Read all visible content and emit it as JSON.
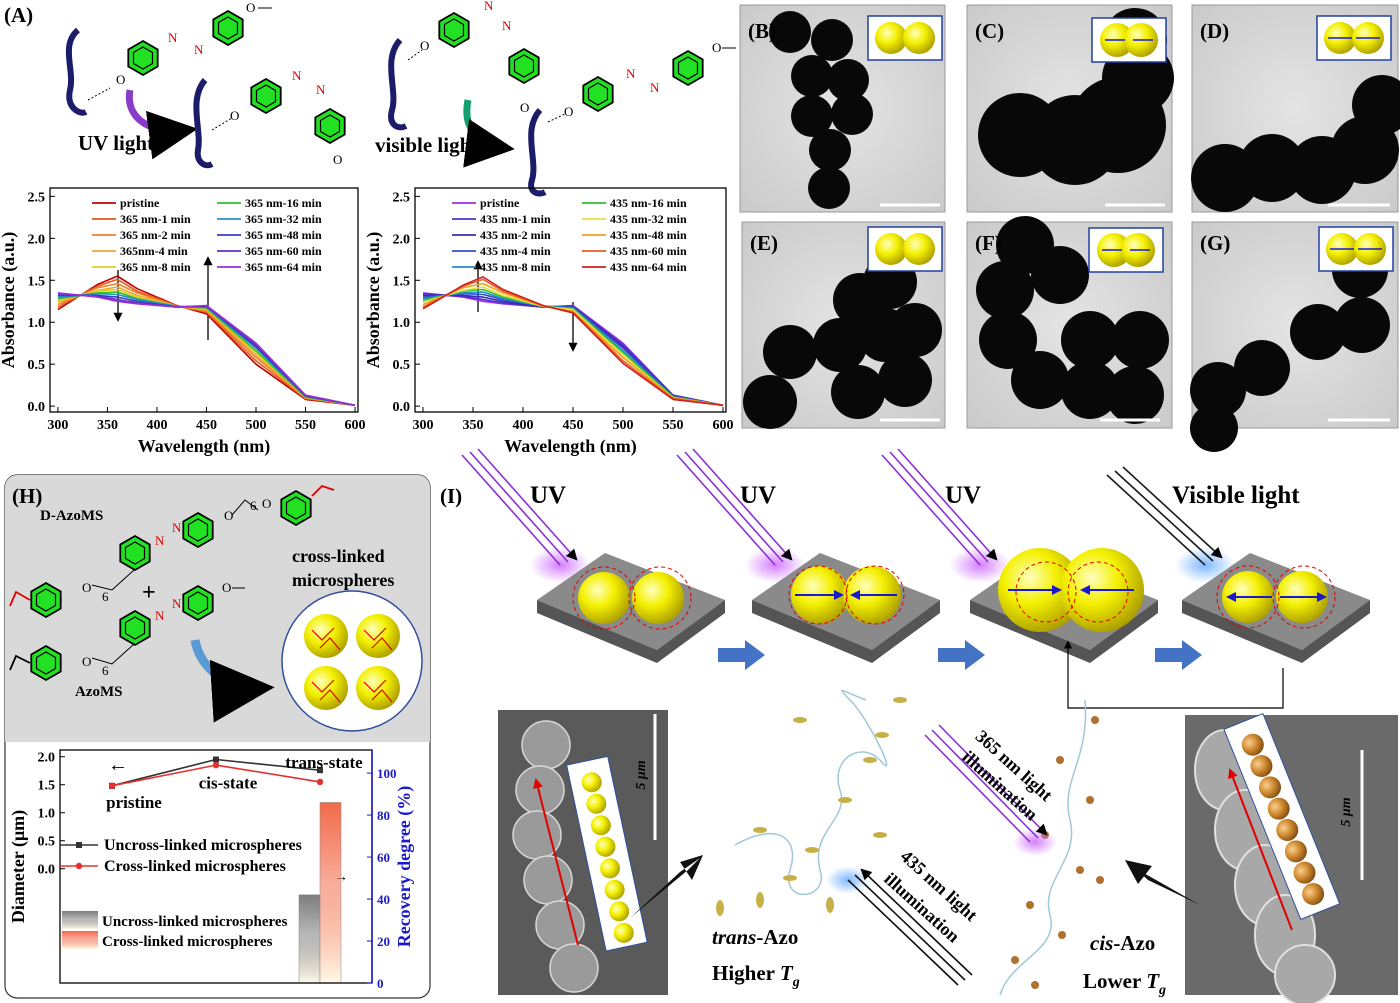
{
  "panel_labels": {
    "A": "(A)",
    "B": "(B)",
    "C": "(C)",
    "D": "(D)",
    "E": "(E)",
    "F": "(F)",
    "G": "(G)",
    "H": "(H)",
    "I": "(I)"
  },
  "scheme": {
    "uv_light": "UV light",
    "visible_light": "visible light",
    "atom_o": "O",
    "atom_n": "N",
    "subscript": "6",
    "d_azoms": "D-AzoMS",
    "azoms": "AzoMS",
    "plus": "+",
    "crosslinked": [
      "cross-linked",
      "microspheres"
    ]
  },
  "process": {
    "uv": "UV",
    "visible": "Visible light",
    "uv365": [
      "365 nm light",
      "illumination"
    ],
    "vis435": [
      "435 nm light",
      "illumination"
    ],
    "trans": [
      "trans",
      "-Azo"
    ],
    "higher": [
      "Higher ",
      "T",
      "g"
    ],
    "cis": [
      "cis",
      "-Azo"
    ],
    "lower": [
      "Lower ",
      "T",
      "g"
    ],
    "scale": "5 μm"
  },
  "chart_data": [
    {
      "type": "line",
      "xlabel": "Wavelength (nm)",
      "ylabel": "Absorbance (a.u.)",
      "x": [
        300,
        340,
        360,
        380,
        420,
        450,
        500,
        550,
        600
      ],
      "xlim": [
        292,
        603
      ],
      "xticks": [
        300,
        350,
        400,
        450,
        500,
        550,
        600
      ],
      "ylim": [
        -0.07,
        2.6
      ],
      "yticks": [
        {
          "value": 0,
          "label": "0.0"
        },
        0.5,
        {
          "value": 1,
          "label": "1.0"
        },
        1.5,
        {
          "value": 2,
          "label": "2.0"
        },
        2.5
      ],
      "series": [
        {
          "name": "pristine",
          "color": "#c00000",
          "values": [
            1.15,
            1.45,
            1.55,
            1.4,
            1.2,
            1.1,
            0.5,
            0.08,
            0.01
          ]
        },
        {
          "name": "365 nm-1 min",
          "color": "#e8581a",
          "values": [
            1.18,
            1.43,
            1.51,
            1.37,
            1.2,
            1.12,
            0.54,
            0.09,
            0.01
          ]
        },
        {
          "name": "365 nm-2 min",
          "color": "#f0802a",
          "values": [
            1.21,
            1.41,
            1.46,
            1.35,
            1.19,
            1.13,
            0.58,
            0.1,
            0.01
          ]
        },
        {
          "name": "365nm-4 min",
          "color": "#f0a830",
          "values": [
            1.24,
            1.38,
            1.42,
            1.32,
            1.19,
            1.15,
            0.61,
            0.1,
            0.01
          ]
        },
        {
          "name": "365 nm-8 min",
          "color": "#e0d020",
          "values": [
            1.26,
            1.37,
            1.39,
            1.3,
            1.19,
            1.16,
            0.64,
            0.11,
            0.01
          ]
        },
        {
          "name": "365 nm-16 min",
          "color": "#30c030",
          "values": [
            1.28,
            1.35,
            1.36,
            1.28,
            1.19,
            1.17,
            0.66,
            0.11,
            0.01
          ]
        },
        {
          "name": "365 nm-32 min",
          "color": "#2090d0",
          "values": [
            1.3,
            1.34,
            1.33,
            1.27,
            1.19,
            1.18,
            0.69,
            0.12,
            0.01
          ]
        },
        {
          "name": "365 nm-48 min",
          "color": "#3c3cc0",
          "values": [
            1.32,
            1.32,
            1.3,
            1.25,
            1.18,
            1.19,
            0.71,
            0.12,
            0.01
          ]
        },
        {
          "name": "365 nm-60 min",
          "color": "#6030c0",
          "values": [
            1.34,
            1.31,
            1.27,
            1.23,
            1.18,
            1.19,
            0.73,
            0.13,
            0.01
          ]
        },
        {
          "name": "365 nm-64 min",
          "color": "#9a30d8",
          "values": [
            1.35,
            1.3,
            1.25,
            1.22,
            1.18,
            1.2,
            0.75,
            0.13,
            0.01
          ]
        }
      ]
    },
    {
      "type": "line",
      "xlabel": "Wavelength (nm)",
      "ylabel": "Absorbance (a.u.)",
      "x": [
        300,
        340,
        360,
        380,
        420,
        450,
        500,
        550,
        600
      ],
      "xlim": [
        292,
        603
      ],
      "xticks": [
        300,
        350,
        400,
        450,
        500,
        550,
        600
      ],
      "ylim": [
        -0.07,
        2.6
      ],
      "yticks": [
        {
          "value": 0,
          "label": "0.0"
        },
        0.5,
        {
          "value": 1,
          "label": "1.0"
        },
        1.5,
        {
          "value": 2,
          "label": "2.0"
        },
        2.5
      ],
      "series": [
        {
          "name": "pristine",
          "color": "#9a30e8",
          "values": [
            1.35,
            1.3,
            1.25,
            1.22,
            1.18,
            1.2,
            0.75,
            0.13,
            0.01
          ]
        },
        {
          "name": "435 nm-1 min",
          "color": "#5030d0",
          "values": [
            1.34,
            1.31,
            1.27,
            1.23,
            1.18,
            1.19,
            0.73,
            0.13,
            0.01
          ]
        },
        {
          "name": "435 nm-2 min",
          "color": "#4028b0",
          "values": [
            1.32,
            1.32,
            1.3,
            1.25,
            1.18,
            1.19,
            0.71,
            0.12,
            0.01
          ]
        },
        {
          "name": "435 nm-4 min",
          "color": "#3050c8",
          "values": [
            1.3,
            1.34,
            1.33,
            1.27,
            1.19,
            1.18,
            0.69,
            0.12,
            0.01
          ]
        },
        {
          "name": "435 nm-8 min",
          "color": "#2088d8",
          "values": [
            1.28,
            1.35,
            1.36,
            1.28,
            1.19,
            1.17,
            0.66,
            0.11,
            0.01
          ]
        },
        {
          "name": "435 nm-16 min",
          "color": "#30c030",
          "values": [
            1.26,
            1.37,
            1.39,
            1.3,
            1.19,
            1.16,
            0.64,
            0.11,
            0.01
          ]
        },
        {
          "name": "435 nm-32 min",
          "color": "#e8e040",
          "values": [
            1.24,
            1.38,
            1.42,
            1.32,
            1.19,
            1.15,
            0.61,
            0.1,
            0.01
          ]
        },
        {
          "name": "435 nm-48 min",
          "color": "#f0a020",
          "values": [
            1.21,
            1.41,
            1.46,
            1.35,
            1.19,
            1.13,
            0.58,
            0.1,
            0.01
          ]
        },
        {
          "name": "435 nm-60 min",
          "color": "#e86020",
          "values": [
            1.18,
            1.43,
            1.51,
            1.37,
            1.2,
            1.12,
            0.54,
            0.09,
            0.01
          ]
        },
        {
          "name": "435 nm-64 min",
          "color": "#d02020",
          "values": [
            1.16,
            1.44,
            1.54,
            1.39,
            1.2,
            1.11,
            0.51,
            0.08,
            0.01
          ]
        }
      ]
    },
    {
      "type": "line",
      "ylabel": "Diameter (μm)",
      "y2label": "Recovery degree (%)",
      "y2_color": "#1a1acc",
      "categories": [
        "pristine",
        "cis-state",
        "trans-state"
      ],
      "ylim": [
        -2.04,
        2.12
      ],
      "yticks": [
        {
          "value": 0,
          "label": "0.0"
        },
        0.5,
        {
          "value": 1,
          "label": "1.0"
        },
        1.5,
        {
          "value": 2,
          "label": "2.0"
        }
      ],
      "y2lim": [
        0,
        111
      ],
      "y2ticks": [
        0,
        20,
        40,
        60,
        80,
        100
      ],
      "series": [
        {
          "name": "Uncross-linked microspheres",
          "color": "#333333",
          "marker": "square",
          "values": [
            1.48,
            1.95,
            1.76
          ]
        },
        {
          "name": "Cross-linked microspheres",
          "color": "#e83030",
          "marker": "circle",
          "values": [
            1.48,
            1.85,
            1.55
          ]
        },
        {
          "name": "Uncross-linked microspheres",
          "color": "#7d7d7d",
          "kind": "bar",
          "axis": "y2",
          "values": [
            null,
            null,
            42
          ]
        },
        {
          "name": "Cross-linked microspheres",
          "color": "#f26a4a",
          "kind": "bar",
          "axis": "y2",
          "values": [
            null,
            null,
            86
          ]
        }
      ]
    }
  ]
}
